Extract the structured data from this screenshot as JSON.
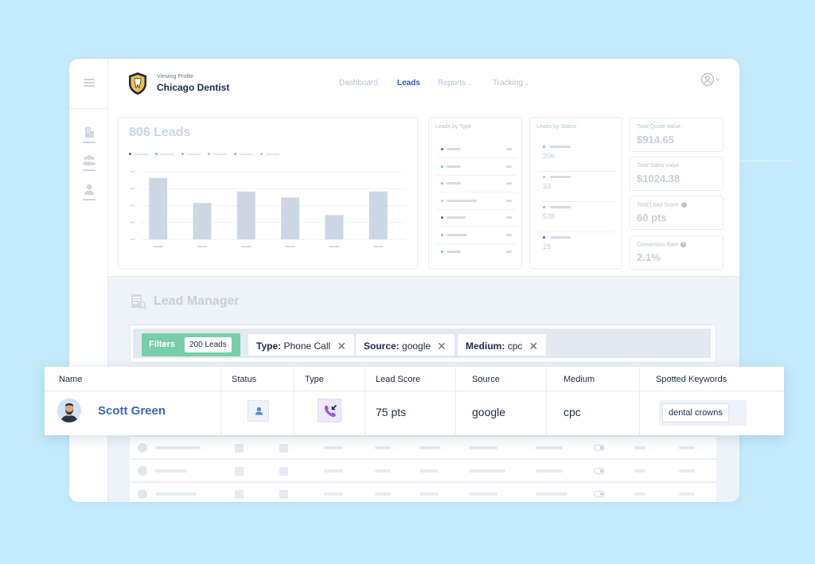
{
  "header": {
    "viewing_label": "Viewing Profile",
    "profile_name": "Chicago Dentist",
    "nav": [
      {
        "label": "Dashboard"
      },
      {
        "label": "Leads"
      },
      {
        "label": "Reports"
      },
      {
        "label": "Tracking"
      }
    ],
    "active_nav": "Leads"
  },
  "colors": {
    "accent": "#2c55c7",
    "filter_green": "#77cfa9",
    "background": "#c4ebfb"
  },
  "chart": {
    "title": "806 Leads",
    "legend_colors": [
      "#3d66c2",
      "#4fc3e8",
      "#77cfa9",
      "#f6b08a",
      "#f08aa2",
      "#b9c3d0"
    ]
  },
  "chart_data": {
    "type": "bar",
    "title": "806 Leads",
    "values": [
      91,
      54,
      71,
      62,
      36,
      71
    ],
    "ylim": [
      0,
      100
    ],
    "grid": true
  },
  "leads_by_type": {
    "title": "Leads by Type",
    "dot_colors": [
      "#3d66c2",
      "#4fc3e8",
      "#77cfa9",
      "#f6b08a",
      "#3d66c2",
      "#f08aa2",
      "#4fc3e8",
      "#f6b08a"
    ]
  },
  "leads_by_status": {
    "title": "Leads by Status",
    "items": [
      {
        "value": "206",
        "color": "#77cfa9"
      },
      {
        "value": "33",
        "color": "#f6b08a"
      },
      {
        "value": "538",
        "color": "#f08aa2"
      },
      {
        "value": "29",
        "color": "#3d66c2"
      }
    ]
  },
  "kpis": [
    {
      "label": "Total Quote Value",
      "value": "$914.65",
      "help": false
    },
    {
      "label": "Total Sales Value",
      "value": "$1024.38",
      "help": false
    },
    {
      "label": "Total Lead Score",
      "value": "60 pts",
      "help": true
    },
    {
      "label": "Conversion Rate",
      "value": "2.1%",
      "help": true
    }
  ],
  "lead_manager": {
    "title": "Lead Manager",
    "filters_label": "Filters",
    "lead_count": "200 Leads",
    "chips": [
      {
        "key": "Type:",
        "value": "Phone Call"
      },
      {
        "key": "Source:",
        "value": "google"
      },
      {
        "key": "Medium:",
        "value": "cpc"
      }
    ]
  },
  "table": {
    "columns": [
      "Name",
      "Status",
      "Type",
      "Lead Score",
      "Source",
      "Medium",
      "Spotted Keywords"
    ],
    "row": {
      "name": "Scott Green",
      "lead_score": "75 pts",
      "source": "google",
      "medium": "cpc",
      "keyword": "dental crowns",
      "status_icon": "person-icon",
      "type_icon": "incoming-call-icon"
    }
  }
}
